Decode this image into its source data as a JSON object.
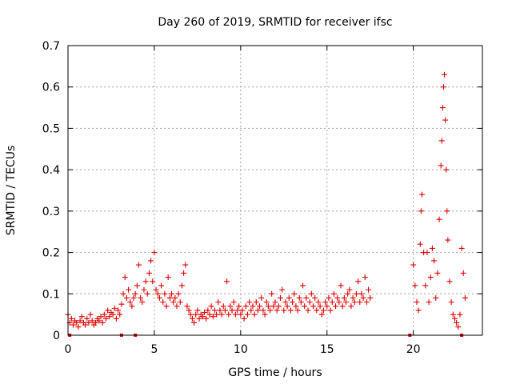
{
  "chart_data": {
    "type": "scatter",
    "title": "Day 260 of 2019, SRMTID for receiver ifsc",
    "xlabel": "GPS time / hours",
    "ylabel": "SRMTID / TECUs",
    "xlim": [
      0,
      24
    ],
    "ylim": [
      0,
      0.7
    ],
    "xticks": [
      0,
      5,
      10,
      15,
      20
    ],
    "xtick_labels": [
      "0",
      "5",
      "10",
      "15",
      "20"
    ],
    "yticks": [
      0,
      0.1,
      0.2,
      0.3,
      0.4,
      0.5,
      0.6,
      0.7
    ],
    "ytick_labels": [
      "0",
      "0.1",
      "0.2",
      "0.3",
      "0.4",
      "0.5",
      "0.6",
      "0.7"
    ],
    "grid": true,
    "marker": "plus",
    "color": "#e00000",
    "series": [
      {
        "name": "SRMTID",
        "points": [
          [
            0.0,
            0.05
          ],
          [
            0.1,
            0.03
          ],
          [
            0.2,
            0.04
          ],
          [
            0.3,
            0.025
          ],
          [
            0.4,
            0.035
          ],
          [
            0.5,
            0.03
          ],
          [
            0.6,
            0.02
          ],
          [
            0.7,
            0.035
          ],
          [
            0.8,
            0.045
          ],
          [
            0.9,
            0.03
          ],
          [
            1.0,
            0.025
          ],
          [
            1.1,
            0.04
          ],
          [
            1.2,
            0.03
          ],
          [
            1.3,
            0.05
          ],
          [
            1.4,
            0.035
          ],
          [
            1.5,
            0.025
          ],
          [
            1.6,
            0.03
          ],
          [
            1.7,
            0.04
          ],
          [
            1.8,
            0.035
          ],
          [
            1.9,
            0.045
          ],
          [
            2.0,
            0.03
          ],
          [
            2.1,
            0.05
          ],
          [
            2.2,
            0.04
          ],
          [
            2.3,
            0.06
          ],
          [
            2.4,
            0.045
          ],
          [
            2.5,
            0.055
          ],
          [
            2.6,
            0.05
          ],
          [
            2.7,
            0.065
          ],
          [
            2.8,
            0.04
          ],
          [
            2.9,
            0.06
          ],
          [
            3.0,
            0.05
          ],
          [
            3.1,
            0.075
          ],
          [
            3.2,
            0.1
          ],
          [
            3.3,
            0.14
          ],
          [
            3.4,
            0.09
          ],
          [
            3.5,
            0.11
          ],
          [
            3.6,
            0.08
          ],
          [
            3.7,
            0.07
          ],
          [
            3.8,
            0.09
          ],
          [
            3.9,
            0.1
          ],
          [
            4.0,
            0.12
          ],
          [
            4.1,
            0.17
          ],
          [
            4.2,
            0.09
          ],
          [
            4.3,
            0.08
          ],
          [
            4.4,
            0.11
          ],
          [
            4.5,
            0.13
          ],
          [
            4.6,
            0.1
          ],
          [
            4.7,
            0.15
          ],
          [
            4.8,
            0.18
          ],
          [
            4.9,
            0.13
          ],
          [
            5.0,
            0.2
          ],
          [
            5.1,
            0.11
          ],
          [
            5.2,
            0.1
          ],
          [
            5.3,
            0.09
          ],
          [
            5.4,
            0.12
          ],
          [
            5.5,
            0.08
          ],
          [
            5.6,
            0.1
          ],
          [
            5.7,
            0.07
          ],
          [
            5.8,
            0.14
          ],
          [
            5.9,
            0.09
          ],
          [
            6.0,
            0.1
          ],
          [
            6.1,
            0.08
          ],
          [
            6.2,
            0.09
          ],
          [
            6.3,
            0.07
          ],
          [
            6.4,
            0.1
          ],
          [
            6.5,
            0.08
          ],
          [
            6.6,
            0.12
          ],
          [
            6.7,
            0.15
          ],
          [
            6.8,
            0.17
          ],
          [
            6.9,
            0.07
          ],
          [
            7.0,
            0.06
          ],
          [
            7.1,
            0.05
          ],
          [
            7.2,
            0.04
          ],
          [
            7.3,
            0.03
          ],
          [
            7.4,
            0.05
          ],
          [
            7.5,
            0.06
          ],
          [
            7.6,
            0.04
          ],
          [
            7.7,
            0.05
          ],
          [
            7.8,
            0.045
          ],
          [
            7.9,
            0.055
          ],
          [
            8.0,
            0.04
          ],
          [
            8.1,
            0.06
          ],
          [
            8.2,
            0.05
          ],
          [
            8.3,
            0.07
          ],
          [
            8.4,
            0.045
          ],
          [
            8.5,
            0.06
          ],
          [
            8.6,
            0.05
          ],
          [
            8.7,
            0.08
          ],
          [
            8.8,
            0.06
          ],
          [
            8.9,
            0.05
          ],
          [
            9.0,
            0.07
          ],
          [
            9.1,
            0.06
          ],
          [
            9.2,
            0.13
          ],
          [
            9.3,
            0.05
          ],
          [
            9.4,
            0.07
          ],
          [
            9.5,
            0.06
          ],
          [
            9.6,
            0.08
          ],
          [
            9.7,
            0.05
          ],
          [
            9.8,
            0.06
          ],
          [
            9.9,
            0.07
          ],
          [
            10.0,
            0.05
          ],
          [
            10.1,
            0.06
          ],
          [
            10.2,
            0.04
          ],
          [
            10.3,
            0.07
          ],
          [
            10.4,
            0.05
          ],
          [
            10.5,
            0.08
          ],
          [
            10.6,
            0.06
          ],
          [
            10.7,
            0.07
          ],
          [
            10.8,
            0.05
          ],
          [
            10.9,
            0.08
          ],
          [
            11.0,
            0.06
          ],
          [
            11.1,
            0.07
          ],
          [
            11.2,
            0.09
          ],
          [
            11.3,
            0.06
          ],
          [
            11.4,
            0.05
          ],
          [
            11.5,
            0.08
          ],
          [
            11.6,
            0.07
          ],
          [
            11.7,
            0.06
          ],
          [
            11.8,
            0.1
          ],
          [
            11.9,
            0.07
          ],
          [
            12.0,
            0.08
          ],
          [
            12.1,
            0.06
          ],
          [
            12.2,
            0.07
          ],
          [
            12.3,
            0.09
          ],
          [
            12.4,
            0.11
          ],
          [
            12.5,
            0.06
          ],
          [
            12.6,
            0.08
          ],
          [
            12.7,
            0.07
          ],
          [
            12.8,
            0.09
          ],
          [
            12.9,
            0.06
          ],
          [
            13.0,
            0.08
          ],
          [
            13.1,
            0.1
          ],
          [
            13.2,
            0.07
          ],
          [
            13.3,
            0.06
          ],
          [
            13.4,
            0.09
          ],
          [
            13.5,
            0.08
          ],
          [
            13.6,
            0.12
          ],
          [
            13.7,
            0.07
          ],
          [
            13.8,
            0.09
          ],
          [
            13.9,
            0.06
          ],
          [
            14.0,
            0.08
          ],
          [
            14.1,
            0.1
          ],
          [
            14.2,
            0.07
          ],
          [
            14.3,
            0.09
          ],
          [
            14.4,
            0.06
          ],
          [
            14.5,
            0.08
          ],
          [
            14.6,
            0.07
          ],
          [
            14.7,
            0.05
          ],
          [
            14.8,
            0.06
          ],
          [
            14.9,
            0.08
          ],
          [
            15.0,
            0.07
          ],
          [
            15.1,
            0.09
          ],
          [
            15.2,
            0.06
          ],
          [
            15.3,
            0.08
          ],
          [
            15.4,
            0.1
          ],
          [
            15.5,
            0.07
          ],
          [
            15.6,
            0.09
          ],
          [
            15.7,
            0.08
          ],
          [
            15.8,
            0.12
          ],
          [
            15.9,
            0.07
          ],
          [
            16.0,
            0.09
          ],
          [
            16.1,
            0.08
          ],
          [
            16.2,
            0.1
          ],
          [
            16.3,
            0.11
          ],
          [
            16.4,
            0.07
          ],
          [
            16.5,
            0.09
          ],
          [
            16.6,
            0.08
          ],
          [
            16.7,
            0.1
          ],
          [
            16.8,
            0.13
          ],
          [
            16.9,
            0.08
          ],
          [
            17.0,
            0.1
          ],
          [
            17.1,
            0.09
          ],
          [
            17.2,
            0.14
          ],
          [
            17.3,
            0.08
          ],
          [
            17.4,
            0.11
          ],
          [
            17.5,
            0.09
          ],
          [
            20.0,
            0.17
          ],
          [
            20.1,
            0.12
          ],
          [
            20.2,
            0.08
          ],
          [
            20.3,
            0.06
          ],
          [
            20.4,
            0.22
          ],
          [
            20.45,
            0.3
          ],
          [
            20.5,
            0.34
          ],
          [
            20.6,
            0.2
          ],
          [
            20.7,
            0.12
          ],
          [
            20.8,
            0.2
          ],
          [
            20.9,
            0.08
          ],
          [
            21.0,
            0.14
          ],
          [
            21.1,
            0.21
          ],
          [
            21.2,
            0.18
          ],
          [
            21.3,
            0.09
          ],
          [
            21.4,
            0.15
          ],
          [
            21.5,
            0.28
          ],
          [
            21.6,
            0.41
          ],
          [
            21.65,
            0.47
          ],
          [
            21.7,
            0.55
          ],
          [
            21.75,
            0.6
          ],
          [
            21.8,
            0.63
          ],
          [
            21.85,
            0.52
          ],
          [
            21.9,
            0.4
          ],
          [
            21.95,
            0.3
          ],
          [
            22.0,
            0.23
          ],
          [
            22.1,
            0.13
          ],
          [
            22.2,
            0.08
          ],
          [
            22.3,
            0.05
          ],
          [
            22.4,
            0.04
          ],
          [
            22.5,
            0.03
          ],
          [
            22.6,
            0.02
          ],
          [
            22.7,
            0.05
          ],
          [
            22.8,
            0.21
          ],
          [
            22.9,
            0.15
          ],
          [
            23.0,
            0.09
          ]
        ]
      },
      {
        "name": "zero-markers",
        "marker": "square",
        "points": [
          [
            0.1,
            0.0
          ],
          [
            3.1,
            0.0
          ],
          [
            3.9,
            0.0
          ],
          [
            19.8,
            0.0
          ],
          [
            22.8,
            0.0
          ]
        ]
      }
    ]
  }
}
